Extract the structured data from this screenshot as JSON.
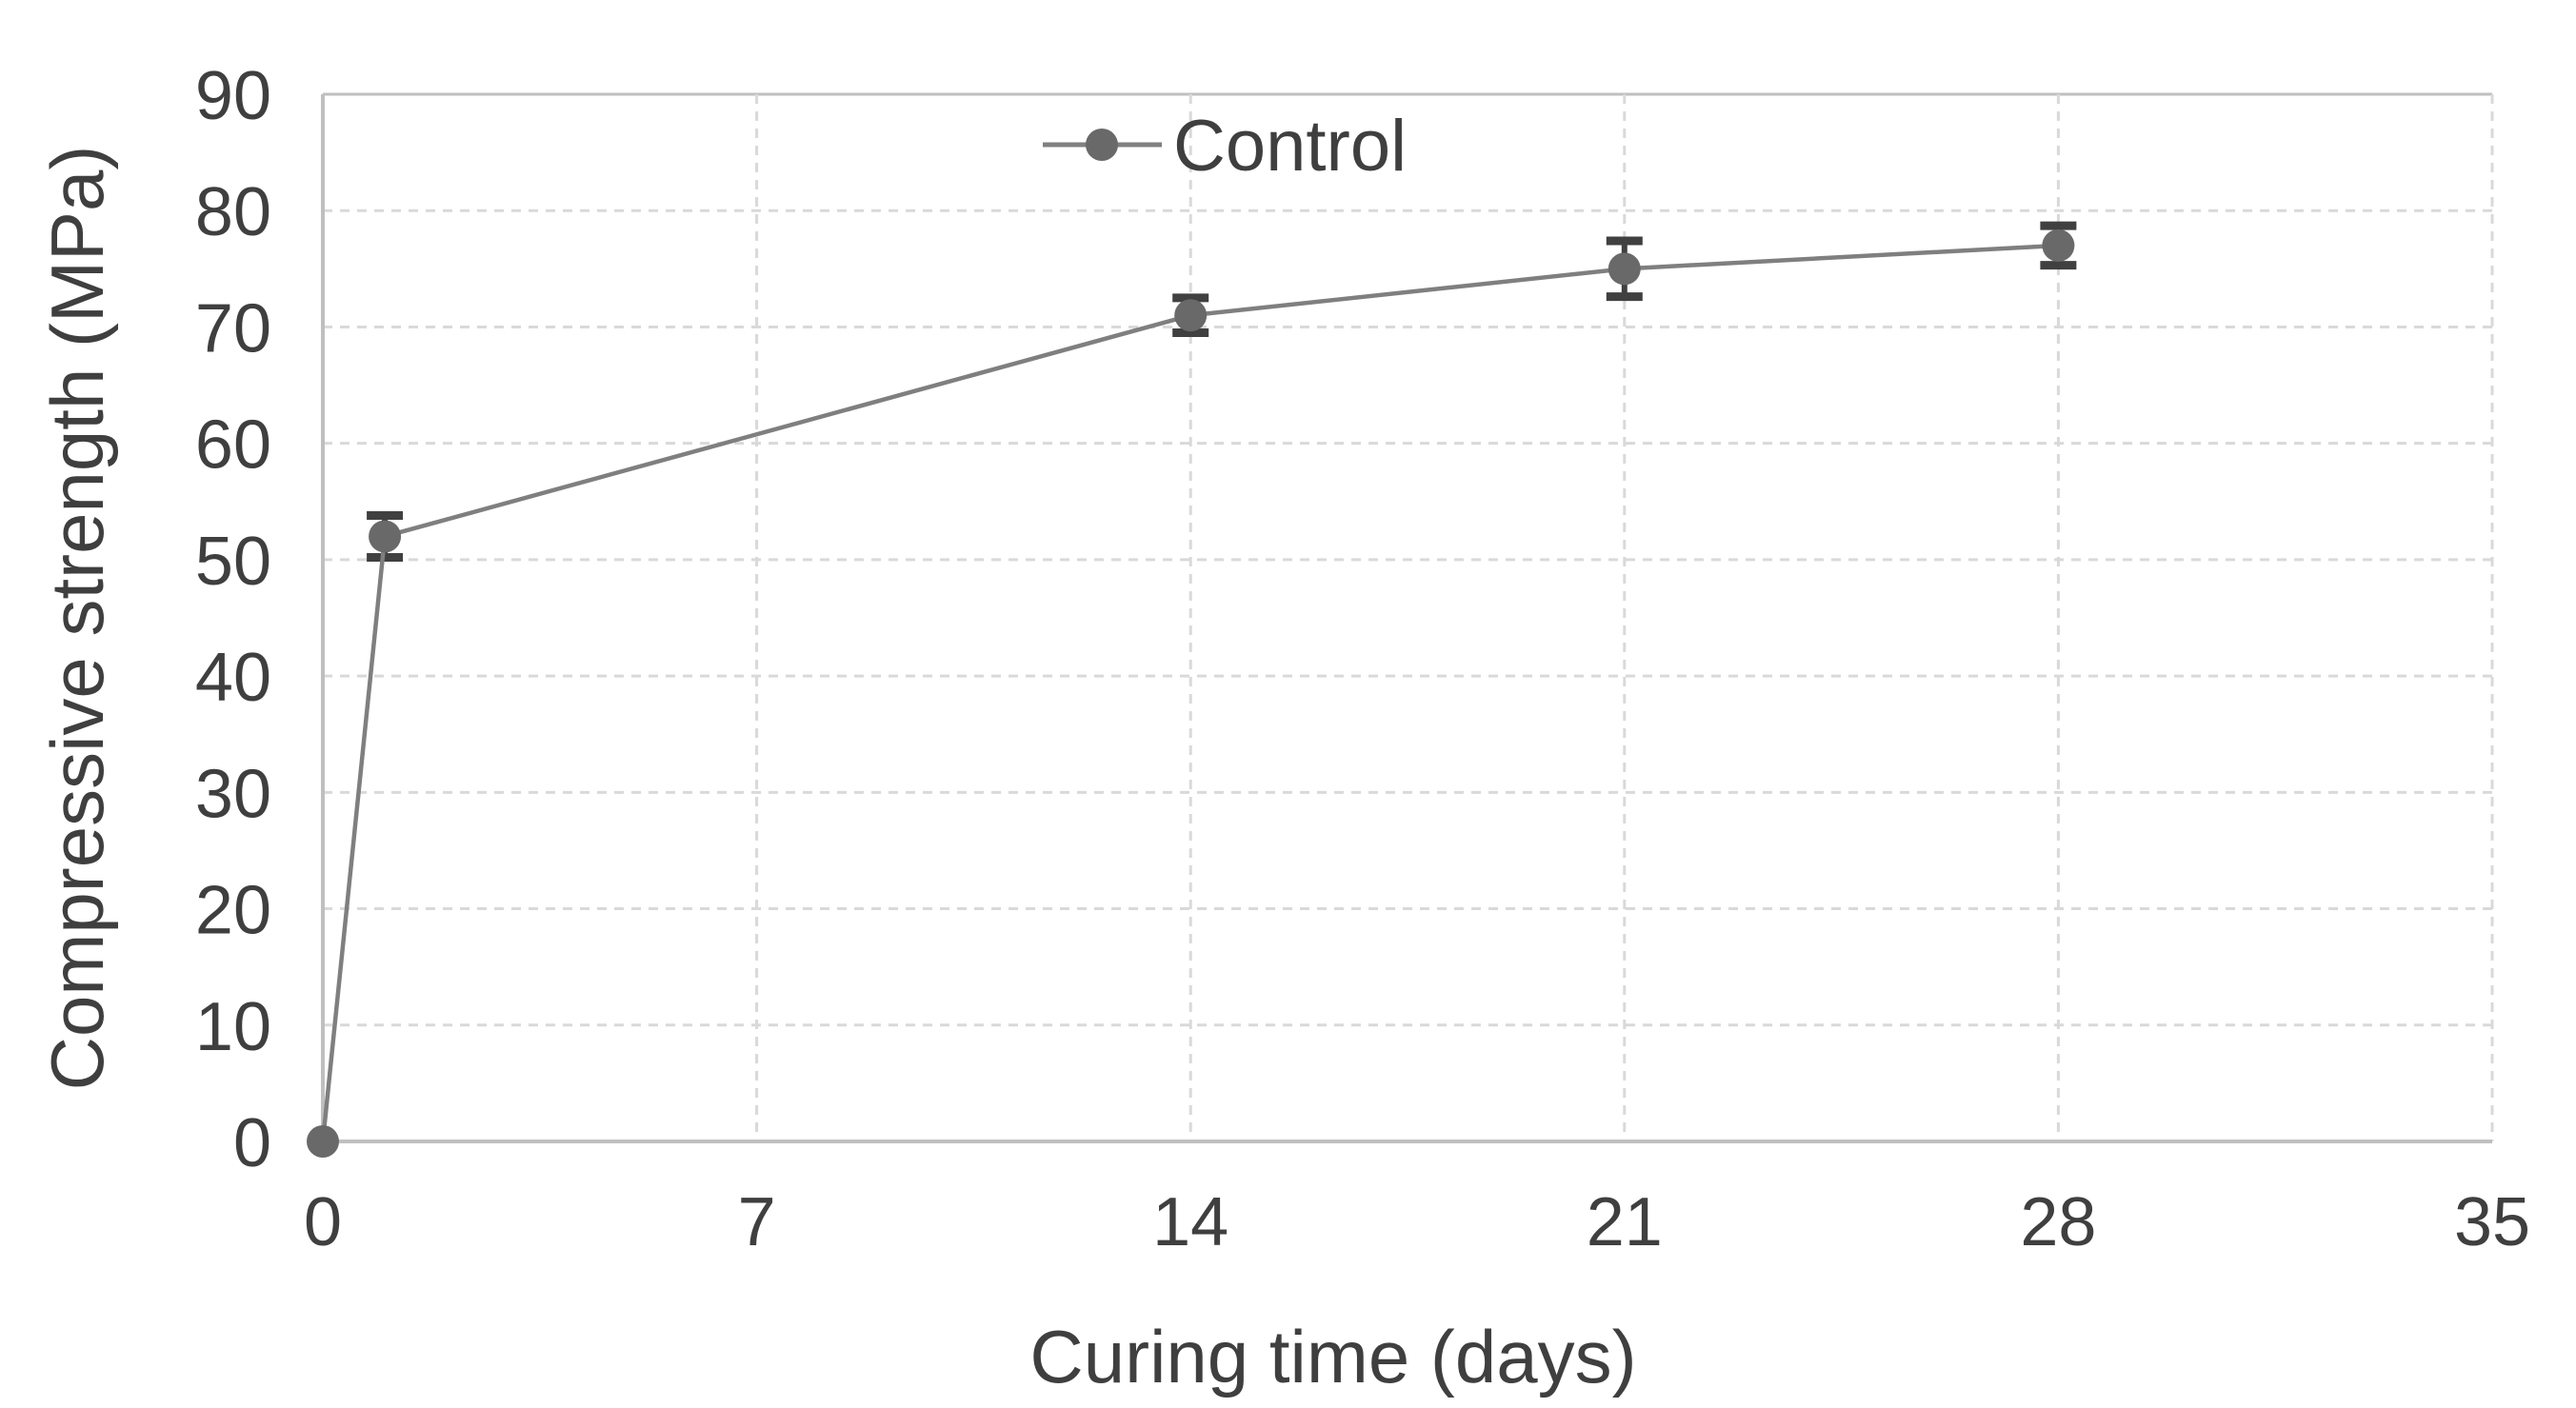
{
  "figure": {
    "background": "#ffffff"
  },
  "chart_data": {
    "type": "line",
    "title": "",
    "xlabel": "Curing time (days)",
    "ylabel": "Compressive strength (MPa)",
    "xlim": [
      0,
      35
    ],
    "ylim": [
      0,
      90
    ],
    "xticks": [
      0,
      7,
      14,
      21,
      28,
      35
    ],
    "yticks": [
      0,
      10,
      20,
      30,
      40,
      50,
      60,
      70,
      80,
      90
    ],
    "grid": true,
    "grid_style": "dashed",
    "legend": {
      "position": "top-center",
      "entries": [
        "Control"
      ]
    },
    "series": [
      {
        "name": "Control",
        "marker": "circle",
        "x": [
          0,
          1,
          14,
          21,
          28
        ],
        "y": [
          0,
          52,
          71,
          75,
          77
        ],
        "y_err": [
          0,
          1.8,
          1.5,
          2.4,
          1.7
        ]
      }
    ],
    "colors": {
      "line": "#7f7f7f",
      "marker": "#696969",
      "error_bar": "#404040",
      "gridline": "#d9d9d9",
      "axis_line": "#bfbfbf",
      "text": "#3f3f3f",
      "background": "#ffffff"
    }
  }
}
